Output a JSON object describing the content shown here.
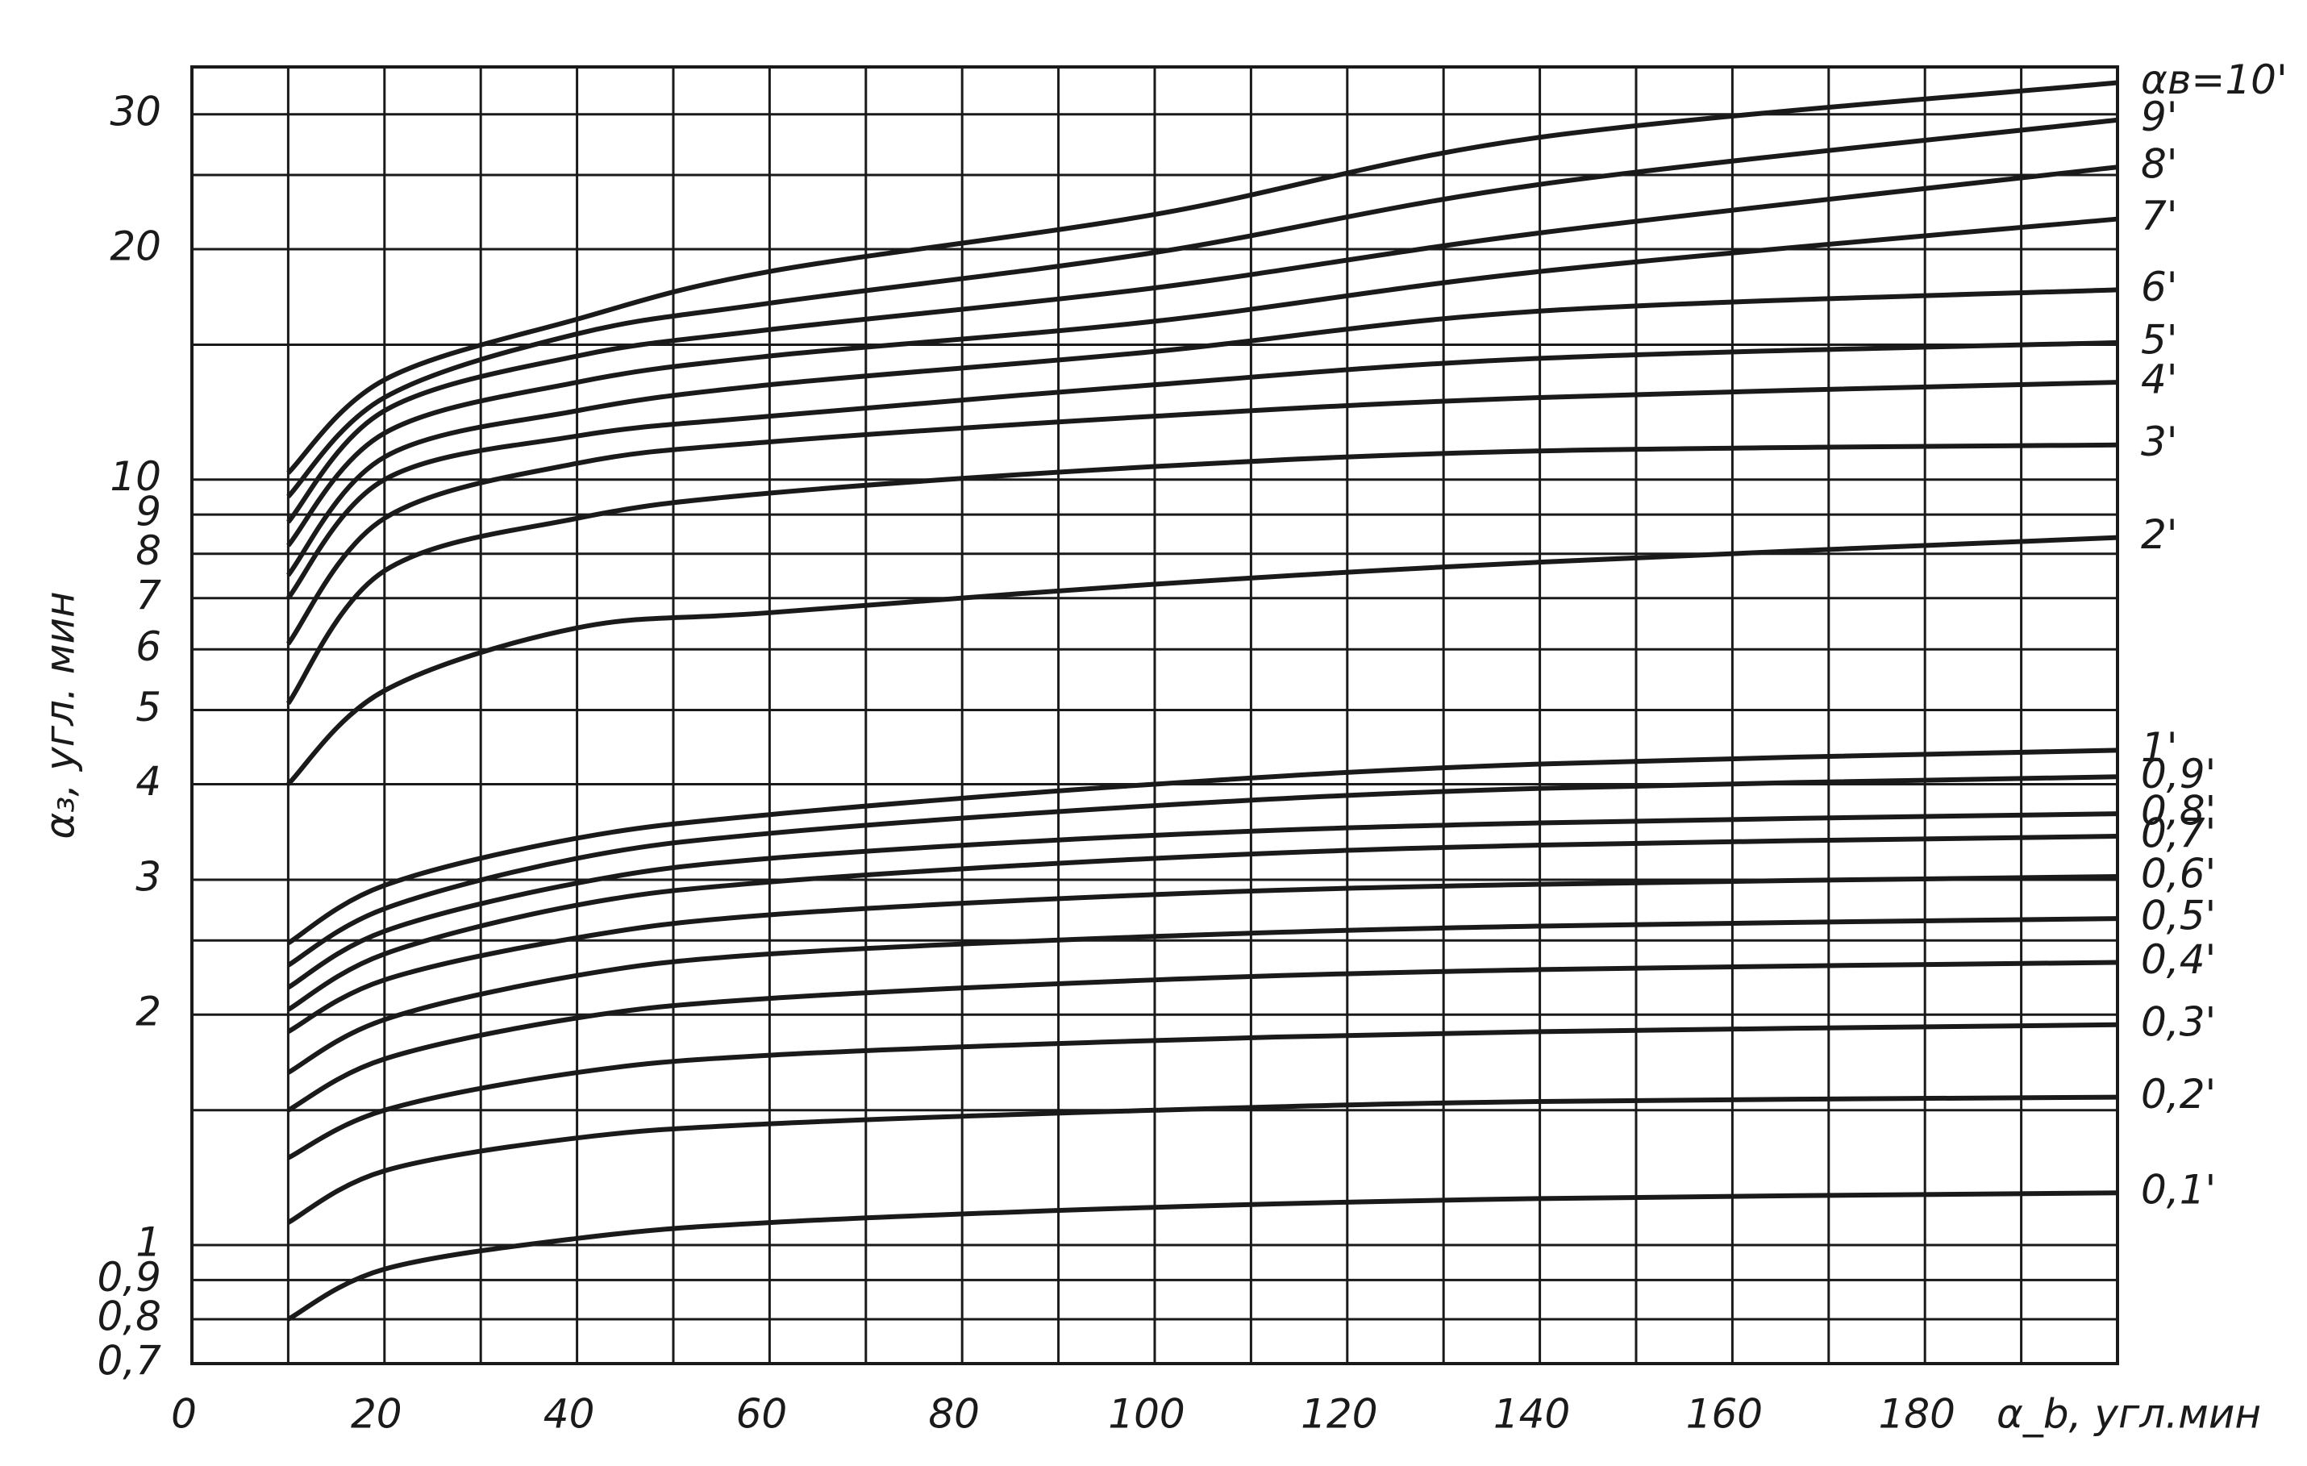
{
  "chart_data": {
    "type": "line",
    "y_label": "α₃, угл. мин",
    "x_label": "α_b, угл.мин",
    "x": [
      10,
      20,
      40,
      60,
      100,
      140,
      200
    ],
    "xlim": [
      0,
      200
    ],
    "xticks": [
      0,
      20,
      40,
      60,
      80,
      100,
      120,
      140,
      160,
      180
    ],
    "x_minor_grid": [
      10,
      30,
      50,
      70,
      90,
      110,
      130,
      150,
      170,
      190,
      200
    ],
    "ylim": [
      0.7,
      34.6
    ],
    "log_y": true,
    "yticks": [
      {
        "value": 0.7,
        "label": "0,7"
      },
      {
        "value": 0.8,
        "label": "0,8"
      },
      {
        "value": 0.9,
        "label": "0,9"
      },
      1,
      2,
      3,
      4,
      5,
      6,
      7,
      8,
      9,
      10,
      20,
      30
    ],
    "y_minor_grid": [
      1.5,
      2.5,
      15,
      25
    ],
    "grid": true,
    "color": "#1a1a1a",
    "series": [
      {
        "name": "αв=10'",
        "values": [
          10.2,
          13.5,
          16.2,
          18.7,
          22.2,
          28,
          33
        ]
      },
      {
        "name": "9'",
        "values": [
          9.5,
          12.8,
          15.5,
          17,
          19.8,
          24.3,
          29.5
        ]
      },
      {
        "name": "8'",
        "values": [
          8.8,
          12.3,
          14.5,
          15.7,
          17.8,
          21,
          25.6
        ]
      },
      {
        "name": "7'",
        "values": [
          8.2,
          11.5,
          13.4,
          14.5,
          16.1,
          18.7,
          21.9
        ]
      },
      {
        "name": "6'",
        "values": [
          7.5,
          10.7,
          12.3,
          13.3,
          14.7,
          16.6,
          17.7
        ]
      },
      {
        "name": "5'",
        "values": [
          7,
          10,
          11.4,
          12.1,
          13.3,
          14.4,
          15.1
        ]
      },
      {
        "name": "4'",
        "values": [
          6.1,
          8.9,
          10.5,
          11.2,
          12.1,
          12.8,
          13.4
        ]
      },
      {
        "name": "3'",
        "values": [
          5.1,
          7.6,
          8.9,
          9.6,
          10.4,
          10.9,
          11.1
        ]
      },
      {
        "name": "2'",
        "values": [
          4,
          5.3,
          6.4,
          6.7,
          7.3,
          7.8,
          8.4
        ]
      },
      {
        "name": "1'",
        "values": [
          2.48,
          2.95,
          3.4,
          3.65,
          4,
          4.25,
          4.43
        ]
      },
      {
        "name": "0,9'",
        "values": [
          2.32,
          2.75,
          3.2,
          3.45,
          3.75,
          3.95,
          4.09
        ]
      },
      {
        "name": "0,8'",
        "values": [
          2.17,
          2.57,
          2.97,
          3.2,
          3.43,
          3.56,
          3.66
        ]
      },
      {
        "name": "0,7'",
        "values": [
          2.03,
          2.4,
          2.78,
          2.98,
          3.2,
          3.33,
          3.42
        ]
      },
      {
        "name": "0,6'",
        "values": [
          1.9,
          2.22,
          2.52,
          2.7,
          2.87,
          2.96,
          3.03
        ]
      },
      {
        "name": "0,5'",
        "values": [
          1.68,
          1.97,
          2.25,
          2.4,
          2.53,
          2.61,
          2.67
        ]
      },
      {
        "name": "0,4'",
        "values": [
          1.5,
          1.75,
          1.98,
          2.1,
          2.22,
          2.29,
          2.34
        ]
      },
      {
        "name": "0,3'",
        "values": [
          1.3,
          1.5,
          1.68,
          1.77,
          1.85,
          1.9,
          1.94
        ]
      },
      {
        "name": "0,2'",
        "values": [
          1.07,
          1.25,
          1.38,
          1.44,
          1.5,
          1.54,
          1.56
        ]
      },
      {
        "name": "0,1'",
        "values": [
          0.8,
          0.93,
          1.02,
          1.07,
          1.12,
          1.15,
          1.17
        ]
      }
    ]
  }
}
